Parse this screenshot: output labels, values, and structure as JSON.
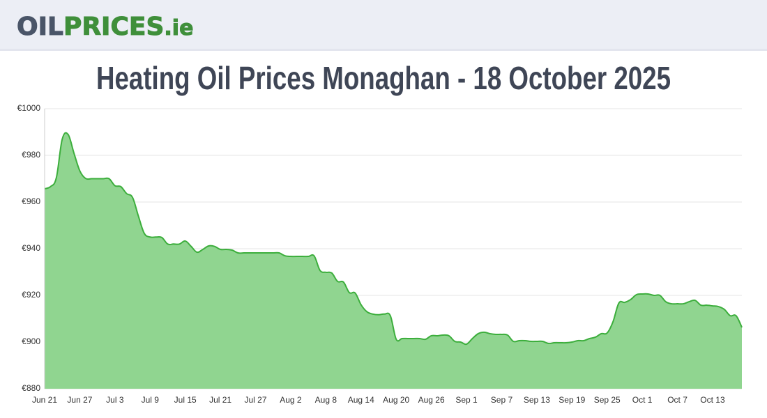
{
  "header": {
    "logo": [
      "OIL",
      "PRICES",
      ".ie"
    ]
  },
  "chart_data": {
    "type": "area",
    "title": "Heating Oil Prices Monaghan - 18 October 2025",
    "categories": [
      "Jun 21",
      null,
      null,
      null,
      null,
      null,
      "Jun 27",
      null,
      null,
      null,
      null,
      null,
      "Jul 3",
      null,
      null,
      null,
      null,
      null,
      "Jul 9",
      null,
      null,
      null,
      null,
      null,
      "Jul 15",
      null,
      null,
      null,
      null,
      null,
      "Jul 21",
      null,
      null,
      null,
      null,
      null,
      "Jul 27",
      null,
      null,
      null,
      null,
      null,
      "Aug 2",
      null,
      null,
      null,
      null,
      null,
      "Aug 8",
      null,
      null,
      null,
      null,
      null,
      "Aug 14",
      null,
      null,
      null,
      null,
      null,
      "Aug 20",
      null,
      null,
      null,
      null,
      null,
      "Aug 26",
      null,
      null,
      null,
      null,
      null,
      "Sep 1",
      null,
      null,
      null,
      null,
      null,
      "Sep 7",
      null,
      null,
      null,
      null,
      null,
      "Sep 13",
      null,
      null,
      null,
      null,
      null,
      "Sep 19",
      null,
      null,
      null,
      null,
      null,
      "Sep 25",
      null,
      null,
      null,
      null,
      null,
      "Oct 1",
      null,
      null,
      null,
      null,
      null,
      "Oct 7",
      null,
      null,
      null,
      null,
      null,
      "Oct 13",
      null,
      null,
      null,
      null,
      null
    ],
    "values": [
      965.7,
      966.6,
      970.4,
      986.9,
      989,
      981,
      973.4,
      970.1,
      970,
      970,
      970,
      970,
      967,
      966.6,
      963.6,
      962,
      954,
      946.6,
      945,
      945,
      944.8,
      942,
      942,
      942,
      943.3,
      941,
      938.5,
      939.7,
      941.2,
      941,
      939.7,
      939.7,
      939.4,
      938.2,
      938.2,
      938.2,
      938.2,
      938.2,
      938.2,
      938.2,
      938.2,
      937,
      936.7,
      936.7,
      936.7,
      936.7,
      936.9,
      930.7,
      929.9,
      929.6,
      926,
      925.7,
      921.2,
      921,
      916,
      913,
      912,
      911.7,
      912,
      911.3,
      901.2,
      901.5,
      901.5,
      901.5,
      901.5,
      901.2,
      902.7,
      902.7,
      903,
      902.7,
      900.3,
      900,
      899.1,
      901.5,
      903.6,
      904.2,
      903.6,
      903.3,
      903.3,
      903,
      900.3,
      900.6,
      900.6,
      900.3,
      900.3,
      900.3,
      899.4,
      899.7,
      899.7,
      899.7,
      900,
      900.6,
      900.6,
      901.5,
      902.1,
      903.6,
      903.9,
      908.7,
      916.7,
      917,
      918.2,
      920.3,
      920.6,
      920.6,
      920,
      920,
      917.3,
      916.4,
      916.4,
      916.4,
      917.3,
      917.9,
      915.8,
      915.8,
      915.5,
      915.2,
      914,
      911.3,
      911.3,
      906.3
    ],
    "color": "#3cae3c",
    "fill": "#90d590",
    "ylim": [
      880,
      1000
    ],
    "yticks": [
      {
        "value": 880,
        "label": "€880"
      },
      {
        "value": 900,
        "label": "€900"
      },
      {
        "value": 920,
        "label": "€920"
      },
      {
        "value": 940,
        "label": "€940"
      },
      {
        "value": 960,
        "label": "€960"
      },
      {
        "value": 980,
        "label": "€980"
      },
      {
        "value": 1000,
        "label": "€1000"
      }
    ],
    "grid": true
  }
}
